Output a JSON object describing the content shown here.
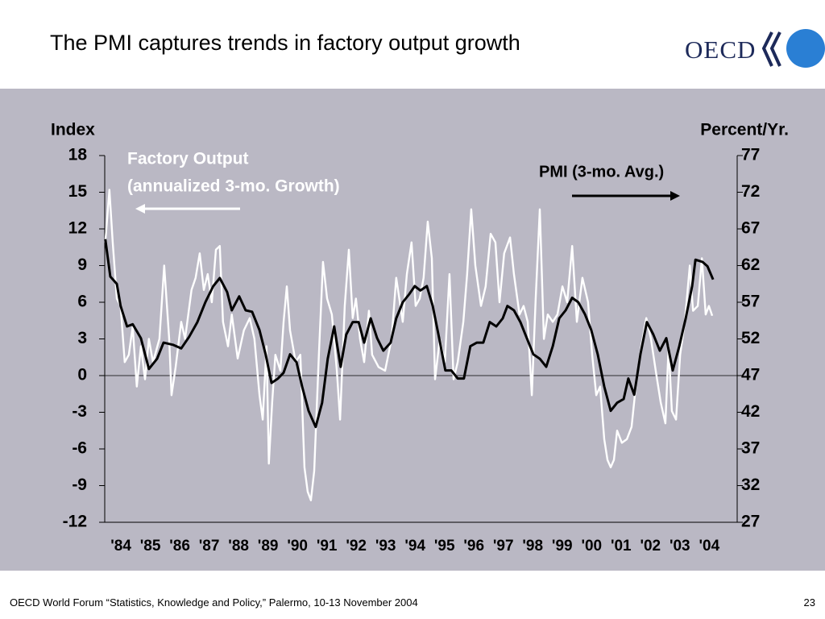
{
  "slide": {
    "logo": "OECD",
    "footer": "OECD World Forum “Statistics, Knowledge and Policy,” Palermo, 10-13 November 2004",
    "page_number": "23"
  },
  "chart_data": {
    "type": "line",
    "title": "The PMI captures trends in factory output growth",
    "y_label": "Index",
    "y2_label": "Percent/Yr.",
    "annotations": [
      "Factory Output",
      "(annualized 3-mo. Growth)",
      "PMI (3-mo. Avg.)"
    ],
    "background": "#bab8c4",
    "xlim": [
      1983.95,
      2005.45
    ],
    "xticks": [
      {
        "value": 1984.5,
        "label": "'84"
      },
      {
        "value": 1985.5,
        "label": "'85"
      },
      {
        "value": 1986.5,
        "label": "'86"
      },
      {
        "value": 1987.5,
        "label": "'87"
      },
      {
        "value": 1988.5,
        "label": "'88"
      },
      {
        "value": 1989.5,
        "label": "'89"
      },
      {
        "value": 1990.5,
        "label": "'90"
      },
      {
        "value": 1991.5,
        "label": "'91"
      },
      {
        "value": 1992.5,
        "label": "'92"
      },
      {
        "value": 1993.5,
        "label": "'93"
      },
      {
        "value": 1994.5,
        "label": "'94"
      },
      {
        "value": 1995.5,
        "label": "'95"
      },
      {
        "value": 1996.5,
        "label": "'96"
      },
      {
        "value": 1997.5,
        "label": "'97"
      },
      {
        "value": 1998.5,
        "label": "'98"
      },
      {
        "value": 1999.5,
        "label": "'99"
      },
      {
        "value": 2000.5,
        "label": "'00"
      },
      {
        "value": 2001.5,
        "label": "'01"
      },
      {
        "value": 2002.5,
        "label": "'02"
      },
      {
        "value": 2003.5,
        "label": "'03"
      },
      {
        "value": 2004.5,
        "label": "'04"
      }
    ],
    "ylim": [
      -12,
      18
    ],
    "yticks": [
      -12,
      -9,
      -6,
      -3,
      0,
      3,
      6,
      9,
      12,
      15,
      18
    ],
    "y2lim": [
      27,
      77
    ],
    "y2ticks": [
      27,
      32,
      37,
      42,
      47,
      52,
      57,
      62,
      67,
      72,
      77
    ],
    "series": [
      {
        "name": "Factory Output",
        "color": "#ffffff",
        "x": [
          1983.97,
          1984.11,
          1984.22,
          1984.36,
          1984.49,
          1984.63,
          1984.77,
          1984.9,
          1985.04,
          1985.18,
          1985.32,
          1985.45,
          1985.59,
          1985.81,
          1985.97,
          1986.14,
          1986.22,
          1986.36,
          1986.55,
          1986.68,
          1986.9,
          1987.04,
          1987.18,
          1987.32,
          1987.45,
          1987.59,
          1987.73,
          1987.86,
          1987.97,
          1988.14,
          1988.27,
          1988.47,
          1988.68,
          1988.88,
          1989.04,
          1989.21,
          1989.32,
          1989.45,
          1989.53,
          1989.64,
          1989.75,
          1989.92,
          1990.03,
          1990.14,
          1990.25,
          1990.44,
          1990.6,
          1990.74,
          1990.85,
          1990.96,
          1991.07,
          1991.23,
          1991.37,
          1991.51,
          1991.67,
          1991.84,
          1991.95,
          1992.11,
          1992.25,
          1992.38,
          1992.49,
          1992.63,
          1992.77,
          1992.93,
          1993.04,
          1993.26,
          1993.48,
          1993.7,
          1993.86,
          1994.08,
          1994.22,
          1994.38,
          1994.52,
          1994.66,
          1994.79,
          1994.93,
          1995.07,
          1995.18,
          1995.34,
          1995.51,
          1995.67,
          1995.81,
          1995.95,
          1996.14,
          1996.27,
          1996.41,
          1996.55,
          1996.74,
          1996.9,
          1997.07,
          1997.23,
          1997.37,
          1997.53,
          1997.73,
          1997.86,
          1998.05,
          1998.19,
          1998.33,
          1998.47,
          1998.6,
          1998.74,
          1998.88,
          1999.01,
          1999.18,
          1999.34,
          1999.51,
          1999.67,
          1999.84,
          2000.0,
          2000.19,
          2000.38,
          2000.52,
          2000.66,
          2000.79,
          2000.93,
          2001.04,
          2001.15,
          2001.26,
          2001.37,
          2001.53,
          2001.7,
          2001.86,
          2002.03,
          2002.19,
          2002.36,
          2002.52,
          2002.68,
          2002.85,
          2003.01,
          2003.12,
          2003.23,
          2003.37,
          2003.51,
          2003.67,
          2003.84,
          2003.95,
          2004.11,
          2004.25,
          2004.38,
          2004.49,
          2004.6
        ],
        "values": [
          10.9,
          15.2,
          10.9,
          6.3,
          5.7,
          1.1,
          1.7,
          4.0,
          -0.9,
          2.4,
          -0.3,
          3.0,
          1.1,
          3.0,
          9.0,
          3.0,
          -1.6,
          0.7,
          4.4,
          3.0,
          7.0,
          8.0,
          10.0,
          7.0,
          8.3,
          6.0,
          10.3,
          10.6,
          4.4,
          2.4,
          5.0,
          1.4,
          3.7,
          4.7,
          3.0,
          -1.6,
          -3.6,
          2.4,
          -7.2,
          -2.2,
          1.7,
          0.4,
          4.4,
          7.3,
          3.7,
          1.1,
          1.7,
          -7.5,
          -9.5,
          -10.2,
          -7.8,
          1.7,
          9.3,
          6.3,
          5.0,
          0.4,
          -3.6,
          5.7,
          10.3,
          4.7,
          6.3,
          3.0,
          1.1,
          5.3,
          1.7,
          0.7,
          0.4,
          3.0,
          8.0,
          4.4,
          8.3,
          10.9,
          5.7,
          6.3,
          8.0,
          12.6,
          9.6,
          -0.3,
          3.0,
          1.1,
          8.3,
          -0.3,
          1.1,
          4.4,
          8.3,
          13.6,
          9.0,
          5.7,
          7.3,
          11.6,
          10.9,
          6.0,
          10.0,
          11.3,
          8.3,
          5.0,
          5.7,
          4.4,
          -1.6,
          6.3,
          13.6,
          3.0,
          5.0,
          4.4,
          5.0,
          7.3,
          6.0,
          10.6,
          4.4,
          8.0,
          6.0,
          1.7,
          -1.6,
          -0.9,
          -5.2,
          -6.9,
          -7.5,
          -6.9,
          -4.5,
          -5.5,
          -5.2,
          -4.2,
          -0.3,
          2.4,
          4.7,
          3.0,
          0.4,
          -2.2,
          -3.9,
          2.4,
          -2.9,
          -3.6,
          1.7,
          4.4,
          9.0,
          5.3,
          5.7,
          9.6,
          5.0,
          5.7,
          4.9
        ]
      },
      {
        "name": "PMI (3-mo. Avg.)",
        "color": "#000000",
        "axis": "y2",
        "x": [
          1983.97,
          1984.14,
          1984.36,
          1984.49,
          1984.71,
          1984.9,
          1985.18,
          1985.45,
          1985.73,
          1985.95,
          1986.27,
          1986.55,
          1986.82,
          1987.1,
          1987.37,
          1987.64,
          1987.86,
          1988.11,
          1988.27,
          1988.52,
          1988.74,
          1988.96,
          1989.21,
          1989.42,
          1989.62,
          1989.84,
          1990.03,
          1990.25,
          1990.47,
          1990.66,
          1990.88,
          1991.12,
          1991.34,
          1991.53,
          1991.75,
          1991.97,
          1992.16,
          1992.38,
          1992.58,
          1992.77,
          1992.99,
          1993.21,
          1993.42,
          1993.67,
          1993.86,
          1994.08,
          1994.3,
          1994.49,
          1994.68,
          1994.9,
          1995.1,
          1995.32,
          1995.53,
          1995.73,
          1995.95,
          1996.16,
          1996.38,
          1996.6,
          1996.82,
          1997.04,
          1997.26,
          1997.48,
          1997.64,
          1997.86,
          1998.08,
          1998.3,
          1998.52,
          1998.74,
          1998.96,
          1999.18,
          1999.4,
          1999.62,
          1999.84,
          2000.05,
          2000.27,
          2000.49,
          2000.71,
          2000.93,
          2001.15,
          2001.37,
          2001.59,
          2001.75,
          2001.95,
          2002.16,
          2002.38,
          2002.6,
          2002.82,
          2003.04,
          2003.26,
          2003.48,
          2003.7,
          2003.92,
          2004.03,
          2004.27,
          2004.44,
          2004.63
        ],
        "values": [
          65.6,
          60.5,
          59.5,
          56.5,
          53.7,
          54.0,
          52.1,
          47.9,
          49.3,
          51.5,
          51.2,
          50.7,
          52.3,
          54.3,
          57.0,
          59.2,
          60.3,
          58.4,
          55.9,
          57.8,
          55.9,
          55.7,
          53.2,
          49.9,
          46.0,
          46.6,
          47.4,
          49.9,
          48.8,
          45.5,
          42.2,
          40.0,
          43.3,
          49.3,
          53.7,
          48.2,
          52.6,
          54.3,
          54.3,
          51.5,
          54.8,
          52.1,
          50.4,
          51.5,
          54.8,
          57.0,
          58.1,
          59.2,
          58.6,
          59.2,
          56.5,
          52.1,
          47.7,
          47.7,
          46.6,
          46.6,
          51.0,
          51.5,
          51.5,
          54.3,
          53.7,
          54.8,
          56.5,
          55.9,
          54.3,
          52.1,
          49.9,
          49.3,
          48.2,
          51.0,
          54.8,
          55.9,
          57.6,
          57.0,
          55.4,
          53.2,
          49.9,
          45.5,
          42.2,
          43.3,
          43.8,
          46.6,
          44.4,
          49.9,
          54.3,
          52.6,
          50.4,
          52.1,
          47.7,
          51.0,
          54.8,
          59.2,
          62.8,
          62.5,
          61.9,
          60.1
        ]
      }
    ]
  }
}
